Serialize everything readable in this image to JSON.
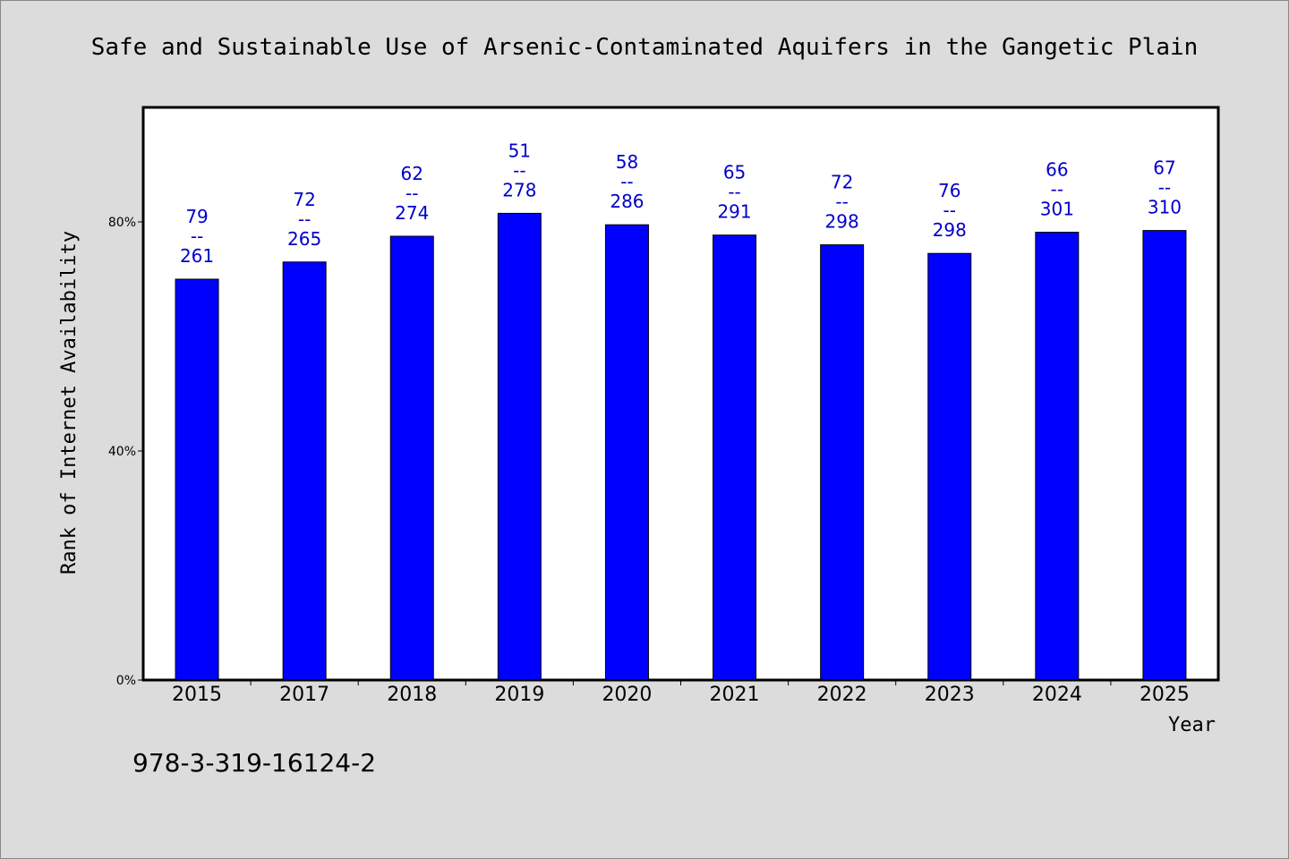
{
  "chart_data": {
    "type": "bar",
    "title": "Safe and Sustainable Use of Arsenic-Contaminated Aquifers in the Gangetic Plain",
    "xlabel": "Year",
    "ylabel": "Rank of Internet Availability",
    "categories": [
      "2015",
      "2017",
      "2018",
      "2019",
      "2020",
      "2021",
      "2022",
      "2023",
      "2024",
      "2025"
    ],
    "values": [
      70,
      73,
      77.5,
      81.5,
      79.5,
      77.7,
      76,
      74.5,
      78.2,
      78.5
    ],
    "label_top": [
      "79",
      "72",
      "62",
      "51",
      "58",
      "65",
      "72",
      "76",
      "66",
      "67"
    ],
    "label_sep": "--",
    "label_bottom": [
      "261",
      "265",
      "274",
      "278",
      "286",
      "291",
      "298",
      "298",
      "301",
      "310"
    ],
    "yticks": [
      0,
      40,
      80
    ],
    "ytick_labels": [
      "0%",
      "40%",
      "80%"
    ],
    "ylim": [
      0,
      100
    ],
    "bar_color": "#0000ff",
    "label_color": "#0000cc",
    "grid": false,
    "legend": "none"
  },
  "footer": {
    "isbn": "978-3-319-16124-2"
  }
}
